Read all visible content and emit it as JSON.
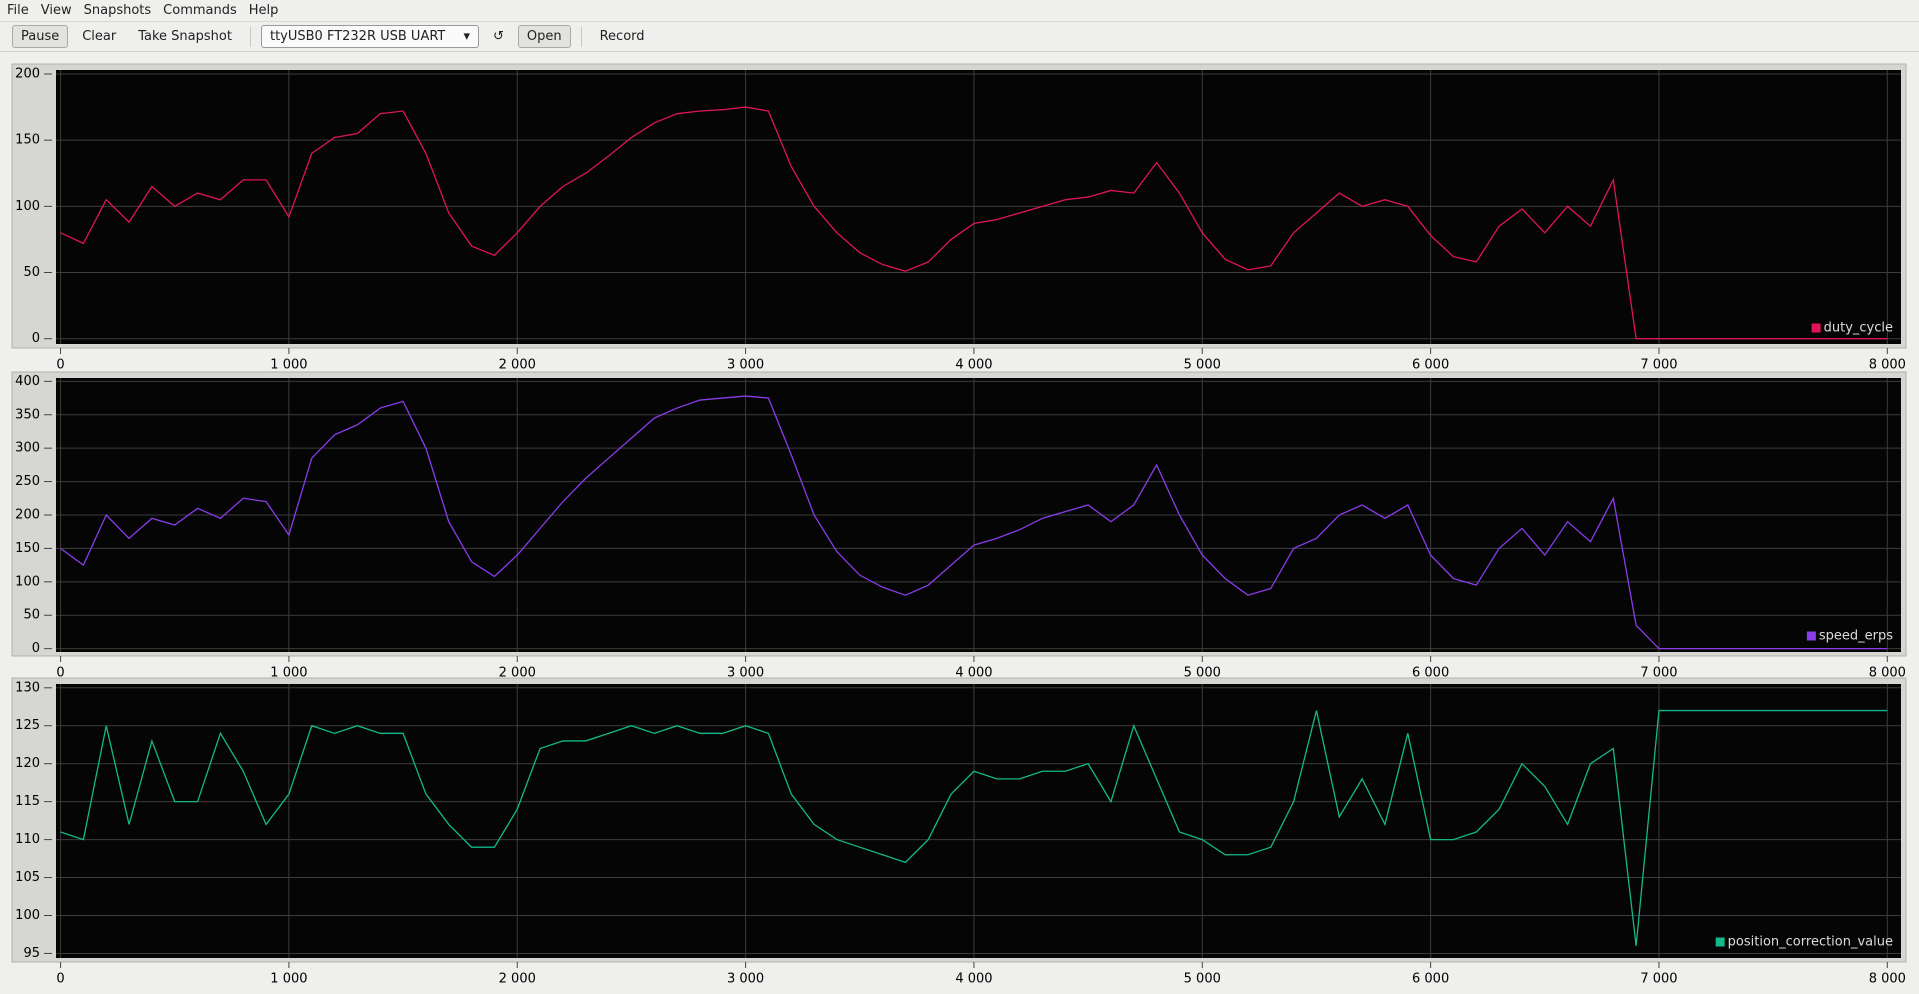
{
  "menu": [
    "File",
    "View",
    "Snapshots",
    "Commands",
    "Help"
  ],
  "toolbar": {
    "pause": "Pause",
    "clear": "Clear",
    "snapshot": "Take Snapshot",
    "port": "ttyUSB0 FT232R USB UART",
    "refresh": "↺",
    "open": "Open",
    "record": "Record"
  },
  "chart_data": [
    {
      "type": "line",
      "xlim": [
        -20,
        8060
      ],
      "ylim": [
        -4,
        203
      ],
      "yticks": [
        0,
        50,
        100,
        150,
        200
      ],
      "xticks": [
        0,
        {
          "value": 1000,
          "label": "1 000"
        },
        {
          "value": 2000,
          "label": "2 000"
        },
        {
          "value": 3000,
          "label": "3 000"
        },
        {
          "value": 4000,
          "label": "4 000"
        },
        {
          "value": 5000,
          "label": "5 000"
        },
        {
          "value": 6000,
          "label": "6 000"
        },
        {
          "value": 7000,
          "label": "7 000"
        },
        {
          "value": 8000,
          "label": "8 000"
        }
      ],
      "grid": true,
      "legend": "lower right",
      "x": [
        0,
        100,
        200,
        300,
        400,
        500,
        600,
        700,
        800,
        900,
        1000,
        1100,
        1200,
        1300,
        1400,
        1500,
        1600,
        1700,
        1800,
        1900,
        2000,
        2100,
        2200,
        2300,
        2400,
        2500,
        2600,
        2700,
        2800,
        2900,
        3000,
        3100,
        3200,
        3300,
        3400,
        3500,
        3600,
        3700,
        3800,
        3900,
        4000,
        4100,
        4200,
        4300,
        4400,
        4500,
        4600,
        4700,
        4800,
        4900,
        5000,
        5100,
        5200,
        5300,
        5400,
        5500,
        5600,
        5700,
        5800,
        5900,
        6000,
        6100,
        6200,
        6300,
        6400,
        6500,
        6600,
        6700,
        6800,
        6900,
        7000,
        7100,
        7200,
        7300,
        7400,
        7500,
        7600,
        7700,
        7800,
        7900,
        8000
      ],
      "series": [
        {
          "name": "duty_cycle",
          "color": "#e0145a",
          "values": [
            80,
            72,
            105,
            88,
            115,
            100,
            110,
            105,
            120,
            120,
            92,
            140,
            152,
            155,
            170,
            172,
            140,
            95,
            70,
            63,
            80,
            100,
            115,
            125,
            138,
            152,
            163,
            170,
            172,
            173,
            175,
            172,
            130,
            100,
            80,
            65,
            56,
            51,
            58,
            75,
            87,
            90,
            95,
            100,
            105,
            107,
            112,
            110,
            133,
            110,
            80,
            60,
            52,
            55,
            80,
            95,
            110,
            100,
            105,
            100,
            78,
            62,
            58,
            85,
            98,
            80,
            100,
            85,
            120,
            0,
            0,
            0,
            0,
            0,
            0,
            0,
            0,
            0,
            0,
            0,
            0
          ]
        }
      ]
    },
    {
      "type": "line",
      "xlim": [
        -20,
        8060
      ],
      "ylim": [
        -5,
        405
      ],
      "yticks": [
        0,
        50,
        100,
        150,
        200,
        250,
        300,
        350,
        400
      ],
      "xticks": [
        0,
        {
          "value": 1000,
          "label": "1 000"
        },
        {
          "value": 2000,
          "label": "2 000"
        },
        {
          "value": 3000,
          "label": "3 000"
        },
        {
          "value": 4000,
          "label": "4 000"
        },
        {
          "value": 5000,
          "label": "5 000"
        },
        {
          "value": 6000,
          "label": "6 000"
        },
        {
          "value": 7000,
          "label": "7 000"
        },
        {
          "value": 8000,
          "label": "8 000"
        }
      ],
      "grid": true,
      "legend": "lower right",
      "x": [
        0,
        100,
        200,
        300,
        400,
        500,
        600,
        700,
        800,
        900,
        1000,
        1100,
        1200,
        1300,
        1400,
        1500,
        1600,
        1700,
        1800,
        1900,
        2000,
        2100,
        2200,
        2300,
        2400,
        2500,
        2600,
        2700,
        2800,
        2900,
        3000,
        3100,
        3200,
        3300,
        3400,
        3500,
        3600,
        3700,
        3800,
        3900,
        4000,
        4100,
        4200,
        4300,
        4400,
        4500,
        4600,
        4700,
        4800,
        4900,
        5000,
        5100,
        5200,
        5300,
        5400,
        5500,
        5600,
        5700,
        5800,
        5900,
        6000,
        6100,
        6200,
        6300,
        6400,
        6500,
        6600,
        6700,
        6800,
        6900,
        7000,
        7100,
        7200,
        7300,
        7400,
        7500,
        7600,
        7700,
        7800,
        7900,
        8000
      ],
      "series": [
        {
          "name": "speed_erps",
          "color": "#8a3ce8",
          "values": [
            150,
            125,
            200,
            165,
            195,
            185,
            210,
            195,
            225,
            220,
            170,
            285,
            320,
            335,
            360,
            370,
            300,
            190,
            130,
            108,
            140,
            180,
            220,
            255,
            285,
            315,
            345,
            360,
            372,
            375,
            378,
            375,
            290,
            200,
            145,
            110,
            92,
            80,
            95,
            125,
            155,
            165,
            178,
            195,
            205,
            215,
            190,
            215,
            275,
            200,
            140,
            105,
            80,
            90,
            150,
            165,
            200,
            215,
            195,
            215,
            140,
            105,
            95,
            150,
            180,
            140,
            190,
            160,
            225,
            35,
            0,
            0,
            0,
            0,
            0,
            0,
            0,
            0,
            0,
            0,
            0
          ]
        }
      ]
    },
    {
      "type": "line",
      "xlim": [
        -20,
        8060
      ],
      "ylim": [
        94.4,
        130.5
      ],
      "yticks": [
        95,
        100,
        105,
        110,
        115,
        120,
        125,
        130
      ],
      "xticks": [
        0,
        {
          "value": 1000,
          "label": "1 000"
        },
        {
          "value": 2000,
          "label": "2 000"
        },
        {
          "value": 3000,
          "label": "3 000"
        },
        {
          "value": 4000,
          "label": "4 000"
        },
        {
          "value": 5000,
          "label": "5 000"
        },
        {
          "value": 6000,
          "label": "6 000"
        },
        {
          "value": 7000,
          "label": "7 000"
        },
        {
          "value": 8000,
          "label": "8 000"
        }
      ],
      "grid": true,
      "legend": "lower right",
      "x": [
        0,
        100,
        200,
        300,
        400,
        500,
        600,
        700,
        800,
        900,
        1000,
        1100,
        1200,
        1300,
        1400,
        1500,
        1600,
        1700,
        1800,
        1900,
        2000,
        2100,
        2200,
        2300,
        2400,
        2500,
        2600,
        2700,
        2800,
        2900,
        3000,
        3100,
        3200,
        3300,
        3400,
        3500,
        3600,
        3700,
        3800,
        3900,
        4000,
        4100,
        4200,
        4300,
        4400,
        4500,
        4600,
        4700,
        4800,
        4900,
        5000,
        5100,
        5200,
        5300,
        5400,
        5500,
        5600,
        5700,
        5800,
        5900,
        6000,
        6100,
        6200,
        6300,
        6400,
        6500,
        6600,
        6700,
        6800,
        6900,
        7000,
        7100,
        7200,
        7300,
        7400,
        7500,
        7600,
        7700,
        7800,
        7900,
        8000
      ],
      "series": [
        {
          "name": "position_correction_value",
          "color": "#14b88a",
          "values": [
            111,
            110,
            125,
            112,
            123,
            115,
            115,
            124,
            119,
            112,
            116,
            125,
            124,
            125,
            124,
            124,
            116,
            112,
            109,
            109,
            114,
            122,
            123,
            123,
            124,
            125,
            124,
            125,
            124,
            124,
            125,
            124,
            116,
            112,
            110,
            109,
            108,
            107,
            110,
            116,
            119,
            118,
            118,
            119,
            119,
            120,
            115,
            125,
            118,
            111,
            110,
            108,
            108,
            109,
            115,
            127,
            113,
            118,
            112,
            124,
            110,
            110,
            111,
            114,
            120,
            117,
            112,
            120,
            122,
            96,
            127,
            127,
            127,
            127,
            127,
            127,
            127,
            127,
            127,
            127,
            127
          ]
        }
      ]
    }
  ]
}
